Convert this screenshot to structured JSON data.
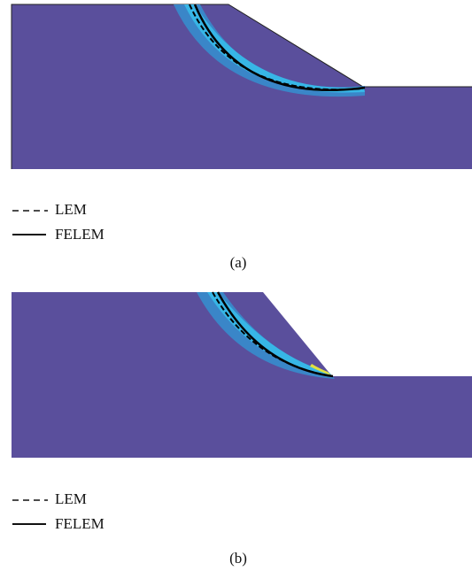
{
  "panels": [
    {
      "legend": [
        {
          "label": "LEM"
        },
        {
          "label": "FELEM"
        }
      ],
      "caption": "(a)"
    },
    {
      "legend": [
        {
          "label": "LEM"
        },
        {
          "label": "FELEM"
        }
      ],
      "caption": "(b)"
    }
  ]
}
